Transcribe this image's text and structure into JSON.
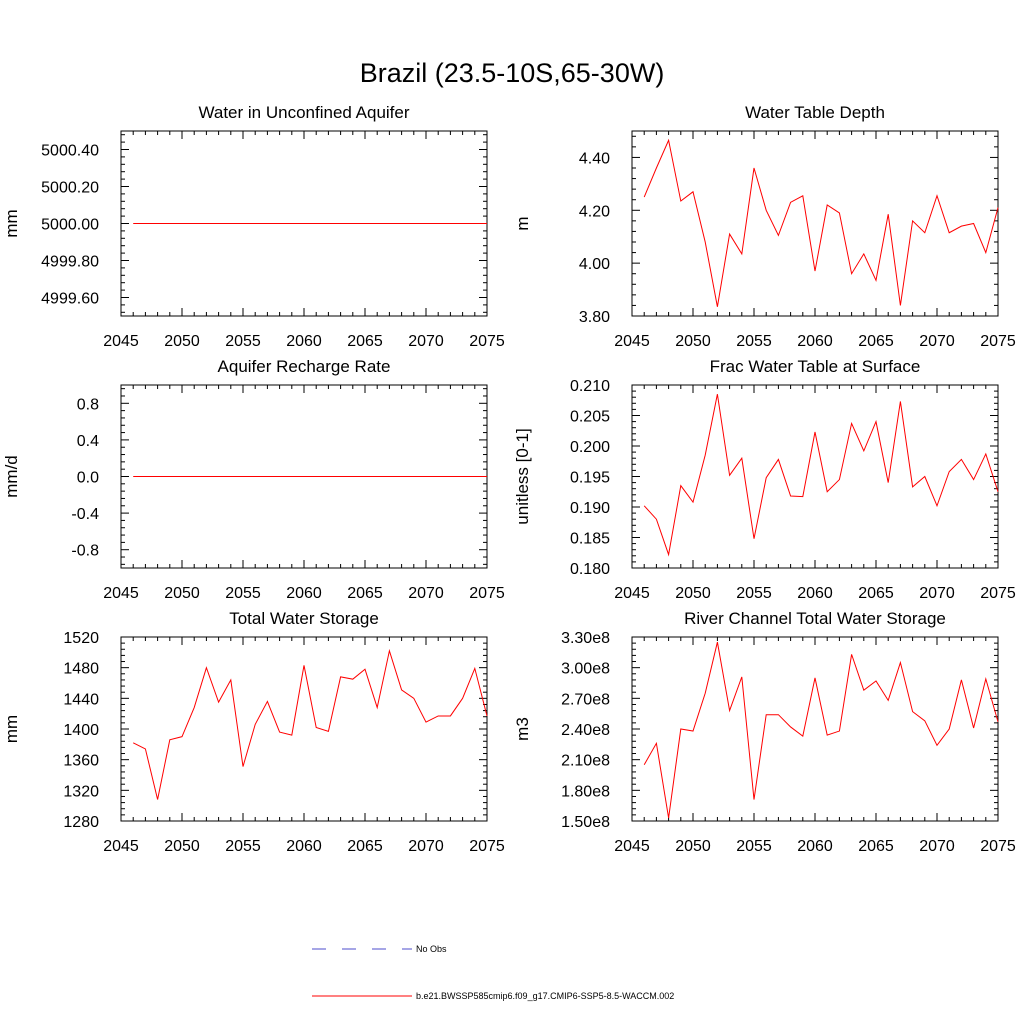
{
  "figure_title": "Brazil (23.5-10S,65-30W)",
  "legend": [
    {
      "label": "No Obs",
      "color": "#4d4dcc",
      "style": "dashed"
    },
    {
      "label": "b.e21.BWSSP585cmip6.f09_g17.CMIP6-SSP5-8.5-WACCM.002",
      "color": "#ff0000",
      "style": "solid"
    }
  ],
  "chart_data": [
    {
      "type": "line",
      "title": "Water in Unconfined Aquifer",
      "xlabel": "",
      "ylabel": "mm",
      "xlim": [
        2045,
        2075
      ],
      "ylim": [
        4999.5,
        5000.5
      ],
      "xticks": [
        2045,
        2050,
        2055,
        2060,
        2065,
        2070,
        2075
      ],
      "xtick_labels": [
        "2045",
        "2050",
        "2055",
        "2060",
        "2065",
        "2070",
        "2075"
      ],
      "yticks": [
        4999.6,
        4999.8,
        5000.0,
        5000.2,
        5000.4
      ],
      "ytick_labels": [
        "4999.60",
        "4999.80",
        "5000.00",
        "5000.20",
        "5000.40"
      ],
      "x": [
        2046,
        2047,
        2048,
        2049,
        2050,
        2051,
        2052,
        2053,
        2054,
        2055,
        2056,
        2057,
        2058,
        2059,
        2060,
        2061,
        2062,
        2063,
        2064,
        2065,
        2066,
        2067,
        2068,
        2069,
        2070,
        2071,
        2072,
        2073,
        2074,
        2075
      ],
      "series": [
        {
          "values": [
            5000,
            5000,
            5000,
            5000,
            5000,
            5000,
            5000,
            5000,
            5000,
            5000,
            5000,
            5000,
            5000,
            5000,
            5000,
            5000,
            5000,
            5000,
            5000,
            5000,
            5000,
            5000,
            5000,
            5000,
            5000,
            5000,
            5000,
            5000,
            5000,
            5000
          ],
          "color": "#ff0000"
        }
      ]
    },
    {
      "type": "line",
      "title": "Water Table Depth",
      "xlabel": "",
      "ylabel": "m",
      "xlim": [
        2045,
        2075
      ],
      "ylim": [
        3.8,
        4.5
      ],
      "xticks": [
        2045,
        2050,
        2055,
        2060,
        2065,
        2070,
        2075
      ],
      "xtick_labels": [
        "2045",
        "2050",
        "2055",
        "2060",
        "2065",
        "2070",
        "2075"
      ],
      "yticks": [
        3.8,
        4.0,
        4.2,
        4.4
      ],
      "ytick_labels": [
        "3.80",
        "4.00",
        "4.20",
        "4.40"
      ],
      "x": [
        2046,
        2047,
        2048,
        2049,
        2050,
        2051,
        2052,
        2053,
        2054,
        2055,
        2056,
        2057,
        2058,
        2059,
        2060,
        2061,
        2062,
        2063,
        2064,
        2065,
        2066,
        2067,
        2068,
        2069,
        2070,
        2071,
        2072,
        2073,
        2074,
        2075
      ],
      "series": [
        {
          "values": [
            4.25,
            4.36,
            4.465,
            4.235,
            4.27,
            4.08,
            3.835,
            4.11,
            4.035,
            4.36,
            4.2,
            4.105,
            4.23,
            4.255,
            3.97,
            4.22,
            4.19,
            3.96,
            4.035,
            3.935,
            4.185,
            3.84,
            4.16,
            4.115,
            4.255,
            4.115,
            4.14,
            4.15,
            4.04,
            4.21
          ],
          "color": "#ff0000"
        }
      ]
    },
    {
      "type": "line",
      "title": "Aquifer Recharge Rate",
      "xlabel": "",
      "ylabel": "mm/d",
      "xlim": [
        2045,
        2075
      ],
      "ylim": [
        -1.0,
        1.0
      ],
      "xticks": [
        2045,
        2050,
        2055,
        2060,
        2065,
        2070,
        2075
      ],
      "xtick_labels": [
        "2045",
        "2050",
        "2055",
        "2060",
        "2065",
        "2070",
        "2075"
      ],
      "yticks": [
        -0.8,
        -0.4,
        0.0,
        0.4,
        0.8
      ],
      "ytick_labels": [
        "-0.8",
        "-0.4",
        "0.0",
        "0.4",
        "0.8"
      ],
      "x": [
        2046,
        2047,
        2048,
        2049,
        2050,
        2051,
        2052,
        2053,
        2054,
        2055,
        2056,
        2057,
        2058,
        2059,
        2060,
        2061,
        2062,
        2063,
        2064,
        2065,
        2066,
        2067,
        2068,
        2069,
        2070,
        2071,
        2072,
        2073,
        2074,
        2075
      ],
      "series": [
        {
          "values": [
            0,
            0,
            0,
            0,
            0,
            0,
            0,
            0,
            0,
            0,
            0,
            0,
            0,
            0,
            0,
            0,
            0,
            0,
            0,
            0,
            0,
            0,
            0,
            0,
            0,
            0,
            0,
            0,
            0,
            0
          ],
          "color": "#ff0000"
        }
      ]
    },
    {
      "type": "line",
      "title": "Frac Water Table at Surface",
      "xlabel": "",
      "ylabel": "unitless [0-1]",
      "xlim": [
        2045,
        2075
      ],
      "ylim": [
        0.18,
        0.21
      ],
      "xticks": [
        2045,
        2050,
        2055,
        2060,
        2065,
        2070,
        2075
      ],
      "xtick_labels": [
        "2045",
        "2050",
        "2055",
        "2060",
        "2065",
        "2070",
        "2075"
      ],
      "yticks": [
        0.18,
        0.185,
        0.19,
        0.195,
        0.2,
        0.205,
        0.21
      ],
      "ytick_labels": [
        "0.180",
        "0.185",
        "0.190",
        "0.195",
        "0.200",
        "0.205",
        "0.210"
      ],
      "x": [
        2046,
        2047,
        2048,
        2049,
        2050,
        2051,
        2052,
        2053,
        2054,
        2055,
        2056,
        2057,
        2058,
        2059,
        2060,
        2061,
        2062,
        2063,
        2064,
        2065,
        2066,
        2067,
        2068,
        2069,
        2070,
        2071,
        2072,
        2073,
        2074,
        2075
      ],
      "series": [
        {
          "values": [
            0.1902,
            0.188,
            0.1822,
            0.1935,
            0.1908,
            0.1985,
            0.2085,
            0.1952,
            0.198,
            0.1848,
            0.1948,
            0.1978,
            0.1918,
            0.1917,
            0.2023,
            0.1925,
            0.1945,
            0.2037,
            0.1992,
            0.204,
            0.194,
            0.2073,
            0.1933,
            0.195,
            0.1902,
            0.1958,
            0.1978,
            0.1945,
            0.1987,
            0.1925
          ],
          "color": "#ff0000"
        }
      ]
    },
    {
      "type": "line",
      "title": "Total Water Storage",
      "xlabel": "",
      "ylabel": "mm",
      "xlim": [
        2045,
        2075
      ],
      "ylim": [
        1280,
        1520
      ],
      "xticks": [
        2045,
        2050,
        2055,
        2060,
        2065,
        2070,
        2075
      ],
      "xtick_labels": [
        "2045",
        "2050",
        "2055",
        "2060",
        "2065",
        "2070",
        "2075"
      ],
      "yticks": [
        1280,
        1320,
        1360,
        1400,
        1440,
        1480,
        1520
      ],
      "ytick_labels": [
        "1280",
        "1320",
        "1360",
        "1400",
        "1440",
        "1480",
        "1520"
      ],
      "x": [
        2046,
        2047,
        2048,
        2049,
        2050,
        2051,
        2052,
        2053,
        2054,
        2055,
        2056,
        2057,
        2058,
        2059,
        2060,
        2061,
        2062,
        2063,
        2064,
        2065,
        2066,
        2067,
        2068,
        2069,
        2070,
        2071,
        2072,
        2073,
        2074,
        2075
      ],
      "series": [
        {
          "values": [
            1382,
            1374,
            1308,
            1386,
            1390,
            1428,
            1480,
            1435,
            1464,
            1351,
            1406,
            1436,
            1396,
            1392,
            1483,
            1402,
            1397,
            1468,
            1465,
            1478,
            1428,
            1502,
            1451,
            1440,
            1409,
            1417,
            1417,
            1440,
            1479,
            1417
          ],
          "color": "#ff0000"
        }
      ]
    },
    {
      "type": "line",
      "title": "River Channel Total Water Storage",
      "xlabel": "",
      "ylabel": "m3",
      "xlim": [
        2045,
        2075
      ],
      "ylim": [
        150000000,
        330000000
      ],
      "xticks": [
        2045,
        2050,
        2055,
        2060,
        2065,
        2070,
        2075
      ],
      "xtick_labels": [
        "2045",
        "2050",
        "2055",
        "2060",
        "2065",
        "2070",
        "2075"
      ],
      "yticks": [
        150000000,
        180000000,
        210000000,
        240000000,
        270000000,
        300000000,
        330000000
      ],
      "ytick_labels": [
        "1.50e8",
        "1.80e8",
        "2.10e8",
        "2.40e8",
        "2.70e8",
        "3.00e8",
        "3.30e8"
      ],
      "x": [
        2046,
        2047,
        2048,
        2049,
        2050,
        2051,
        2052,
        2053,
        2054,
        2055,
        2056,
        2057,
        2058,
        2059,
        2060,
        2061,
        2062,
        2063,
        2064,
        2065,
        2066,
        2067,
        2068,
        2069,
        2070,
        2071,
        2072,
        2073,
        2074,
        2075
      ],
      "series": [
        {
          "values": [
            205000000,
            226000000,
            153000000,
            240000000,
            238000000,
            275000000,
            325000000,
            258000000,
            291000000,
            171000000,
            254000000,
            254000000,
            242000000,
            233000000,
            290000000,
            234000000,
            238000000,
            313000000,
            278000000,
            287000000,
            268000000,
            305000000,
            257000000,
            248000000,
            224000000,
            240000000,
            288000000,
            241000000,
            289000000,
            247000000
          ],
          "color": "#ff0000"
        }
      ]
    }
  ]
}
